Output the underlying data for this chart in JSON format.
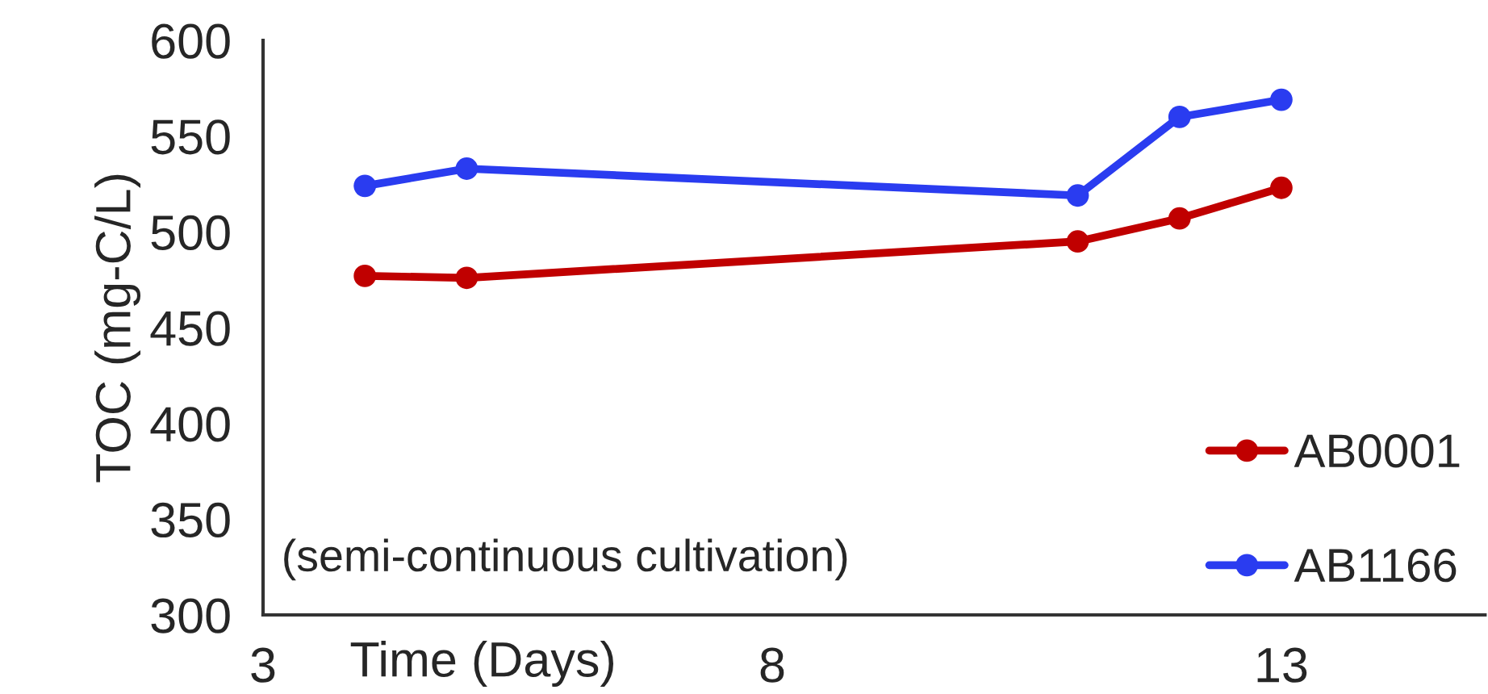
{
  "chart_data": {
    "type": "line",
    "xlabel": "Time (Days)",
    "ylabel": "TOC (mg-C/L)",
    "x": [
      4,
      5,
      11,
      12,
      13
    ],
    "series": [
      {
        "name": "AB0001",
        "color": "#c00000",
        "values": [
          477,
          476,
          495,
          507,
          523
        ]
      },
      {
        "name": "AB1166",
        "color": "#2a3cf0",
        "values": [
          524,
          533,
          519,
          560,
          569
        ]
      }
    ],
    "xlim": [
      3,
      15
    ],
    "xticks": [
      3,
      8,
      13
    ],
    "ylim": [
      300,
      600
    ],
    "yticks": [
      300,
      350,
      400,
      450,
      500,
      550,
      600
    ],
    "annotations": [
      "(semi-continuous cultivation)"
    ],
    "legend": "bottom right",
    "marker": "circle",
    "line_style": "solid",
    "grid": false
  }
}
